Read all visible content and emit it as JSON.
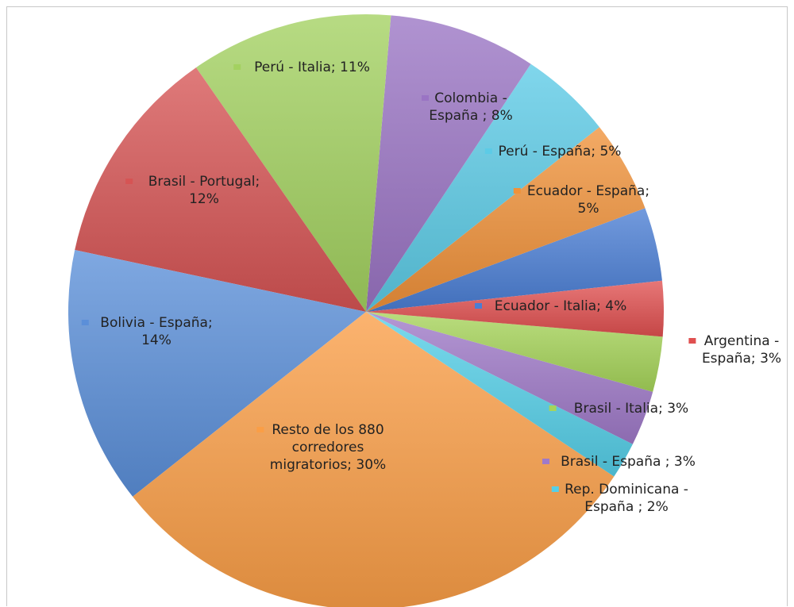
{
  "chart_data": {
    "type": "pie",
    "title": "",
    "start_slice": "Ecuador - Italia",
    "direction": "counterclockwise",
    "slices": [
      {
        "label": "Ecuador - Italia; 4%",
        "category": "Ecuador - Italia",
        "value": 4,
        "color": "#4a7ed4"
      },
      {
        "label": "Ecuador - España; 5%",
        "category": "Ecuador - España",
        "value": 5,
        "color": "#f0923a"
      },
      {
        "label": "Perú - España; 5%",
        "category": "Perú - España",
        "value": 5,
        "color": "#5ccbe6"
      },
      {
        "label": "Colombia - España ; 8%",
        "category": "Colombia - España",
        "value": 8,
        "color": "#9a74c4"
      },
      {
        "label": "Perú - Italia; 11%",
        "category": "Perú - Italia",
        "value": 11,
        "color": "#a3d160"
      },
      {
        "label": "Brasil - Portugal; 12%",
        "category": "Brasil - Portugal",
        "value": 12,
        "color": "#d65454"
      },
      {
        "label": "Bolivia - España; 14%",
        "category": "Bolivia - España",
        "value": 14,
        "color": "#5b8fd9"
      },
      {
        "label": "Resto de los 880 corredores migratorios; 30%",
        "category": "Resto de los 880 corredores migratorios",
        "value": 30,
        "color": "#fa9e46"
      },
      {
        "label": "Rep. Dominicana - España ; 2%",
        "category": "Rep. Dominicana - España",
        "value": 2,
        "color": "#55cfe8"
      },
      {
        "label": "Brasil - España ; 3%",
        "category": "Brasil - España",
        "value": 3,
        "color": "#9f7ac8"
      },
      {
        "label": "Brasil - Italia; 3%",
        "category": "Brasil - Italia",
        "value": 3,
        "color": "#a6d45a"
      },
      {
        "label": "Argentina - España; 3%",
        "category": "Argentina - España",
        "value": 3,
        "color": "#e05050"
      }
    ]
  }
}
